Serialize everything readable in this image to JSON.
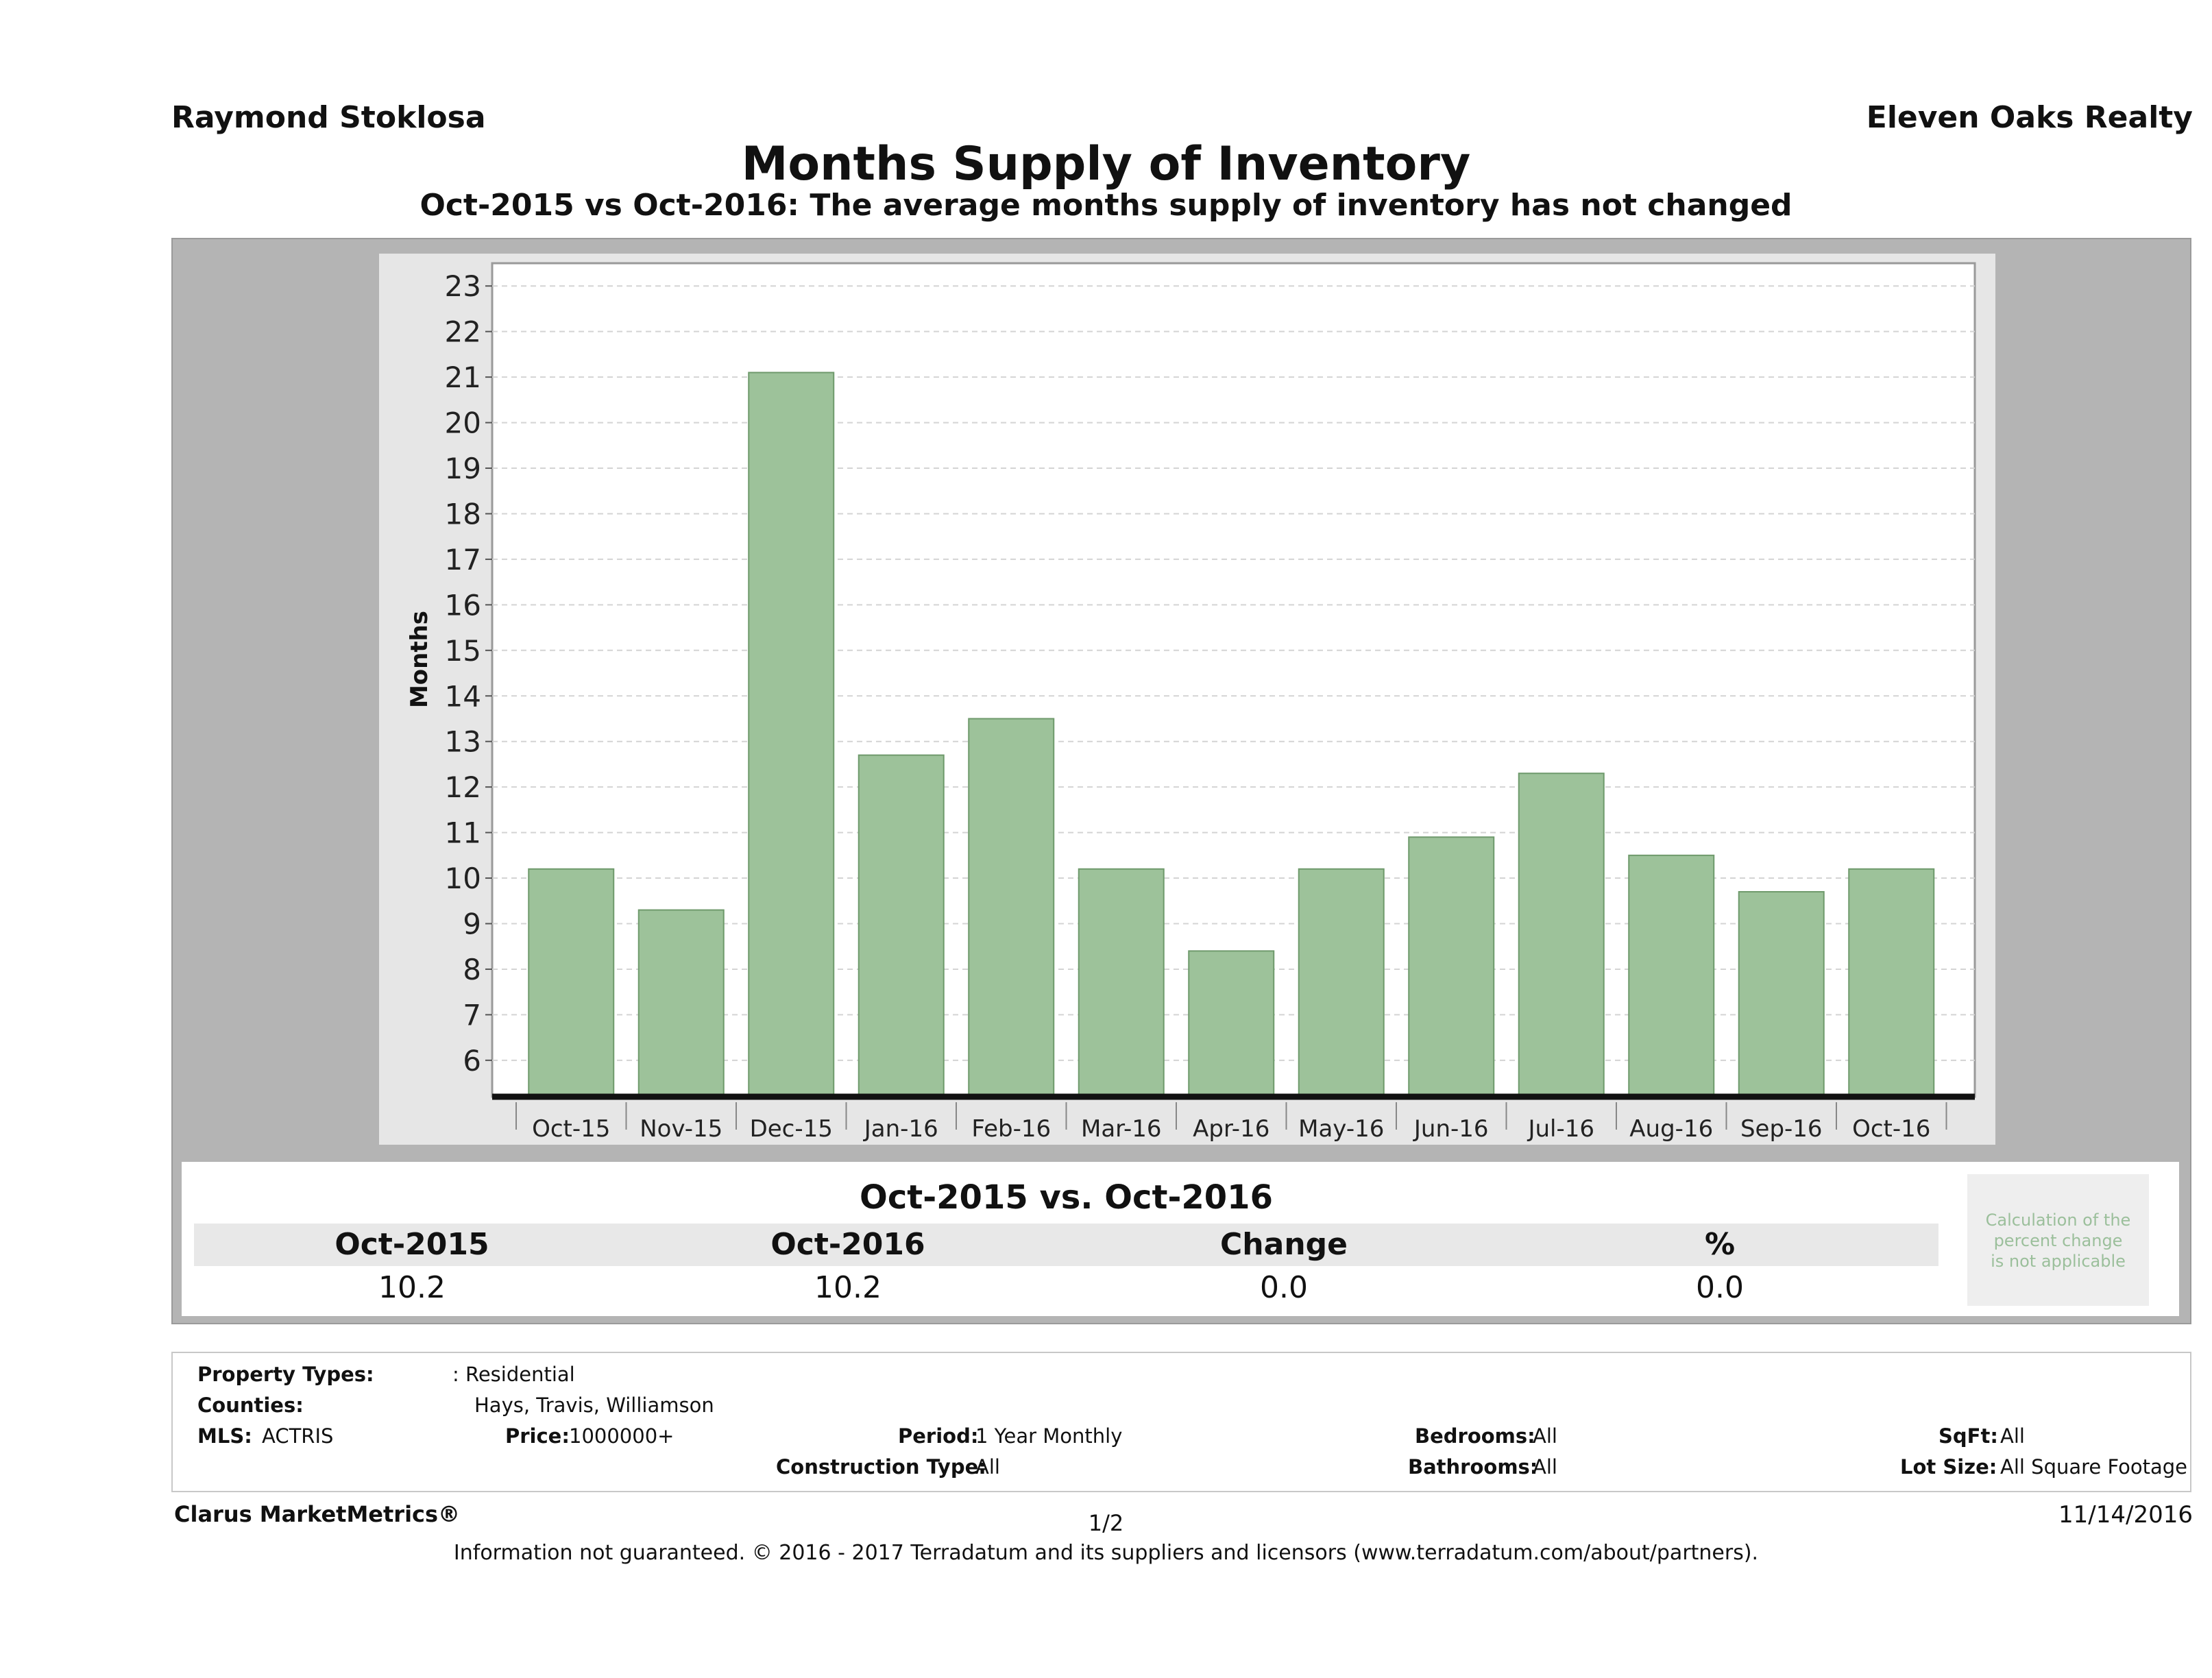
{
  "header": {
    "agent": "Raymond Stoklosa",
    "brokerage": "Eleven Oaks Realty",
    "title": "Months Supply of Inventory",
    "subtitle": "Oct-2015 vs Oct-2016: The average months supply of inventory has not changed"
  },
  "chart_data": {
    "type": "bar",
    "title": "Months Supply of Inventory",
    "categories": [
      "Oct-15",
      "Nov-15",
      "Dec-15",
      "Jan-16",
      "Feb-16",
      "Mar-16",
      "Apr-16",
      "May-16",
      "Jun-16",
      "Jul-16",
      "Aug-16",
      "Sep-16",
      "Oct-16"
    ],
    "values": [
      10.2,
      9.3,
      21.1,
      12.7,
      13.5,
      10.2,
      8.4,
      10.2,
      10.9,
      12.3,
      10.5,
      9.7,
      10.2
    ],
    "xlabel": "",
    "ylabel": "Months",
    "ylim": [
      5.2,
      23.5
    ],
    "yticks": [
      6,
      7,
      8,
      9,
      10,
      11,
      12,
      13,
      14,
      15,
      16,
      17,
      18,
      19,
      20,
      21,
      22,
      23
    ],
    "grid": true,
    "bar_color": "#9dc29a"
  },
  "comparison": {
    "title": "Oct-2015 vs. Oct-2016",
    "headers": [
      "Oct-2015",
      "Oct-2016",
      "Change",
      "%"
    ],
    "values": [
      "10.2",
      "10.2",
      "0.0",
      "0.0"
    ],
    "note_lines": [
      "Calculation of the",
      "percent change",
      "is not applicable"
    ]
  },
  "filters": {
    "property_types_label": "Property Types:",
    "property_types_value": ": Residential",
    "counties_label": "Counties:",
    "counties_value": "Hays, Travis, Williamson",
    "mls_label": "MLS:",
    "mls_value": "ACTRIS",
    "price_label": "Price:",
    "price_value": "1000000+",
    "period_label": "Period:",
    "period_value": "1 Year Monthly",
    "construction_label": "Construction Type:",
    "construction_value": "All",
    "bedrooms_label": "Bedrooms:",
    "bedrooms_value": "All",
    "bathrooms_label": "Bathrooms:",
    "bathrooms_value": "All",
    "sqft_label": "SqFt:",
    "sqft_value": "All",
    "lotsize_label": "Lot Size:",
    "lotsize_value": "All Square Footage"
  },
  "footer": {
    "brand": "Clarus MarketMetrics®",
    "page": "1/2",
    "date": "11/14/2016",
    "disclaimer": "Information not guaranteed. © 2016 - 2017 Terradatum and its suppliers and licensors (www.terradatum.com/about/partners)."
  }
}
